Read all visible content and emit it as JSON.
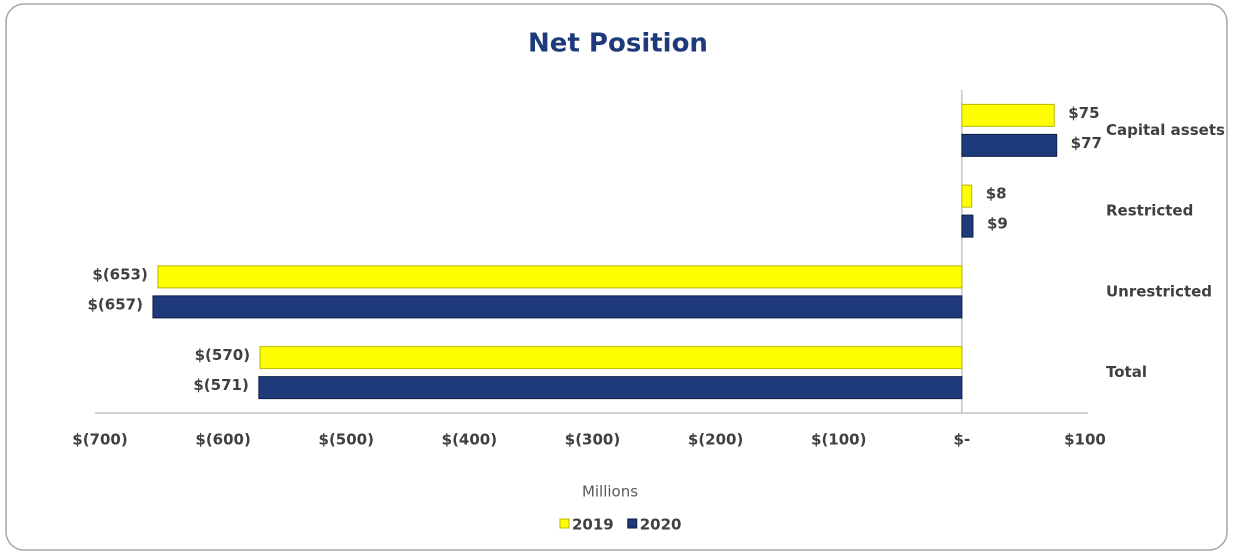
{
  "chart_data": {
    "type": "hbar",
    "title": "Net Position",
    "xlabel": "Millions",
    "categories": [
      "Capital assets",
      "Restricted",
      "Unrestricted",
      "Total"
    ],
    "series": [
      {
        "name": "2019",
        "color": "#ffff00",
        "values": [
          75,
          8,
          -653,
          -570
        ],
        "value_labels": [
          "$75",
          "$8",
          "$(653)",
          "$(570)"
        ]
      },
      {
        "name": "2020",
        "color": "#1f3a7a",
        "values": [
          77,
          9,
          -657,
          -571
        ],
        "value_labels": [
          "$77",
          "$9",
          "$(657)",
          "$(571)"
        ]
      }
    ],
    "xlim": [
      -700,
      100
    ],
    "xticks": [
      {
        "value": -700,
        "label": "$(700)"
      },
      {
        "value": -600,
        "label": "$(600)"
      },
      {
        "value": -500,
        "label": "$(500)"
      },
      {
        "value": -400,
        "label": "$(400)"
      },
      {
        "value": -300,
        "label": "$(300)"
      },
      {
        "value": -200,
        "label": "$(200)"
      },
      {
        "value": -100,
        "label": "$(100)"
      },
      {
        "value": 0,
        "label": "$-"
      },
      {
        "value": 100,
        "label": "$100"
      }
    ],
    "legend": "bottom"
  }
}
